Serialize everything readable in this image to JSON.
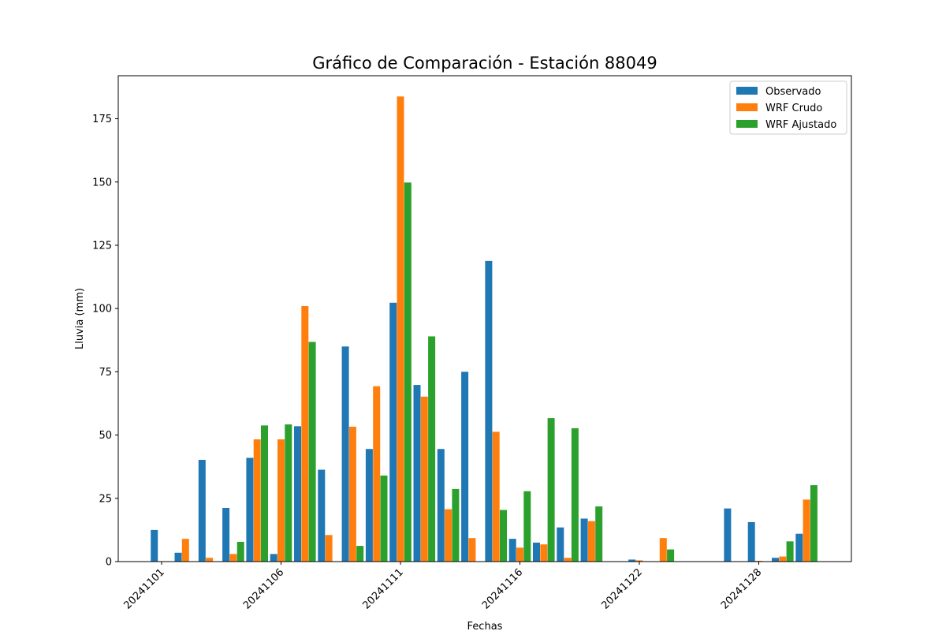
{
  "chart_data": {
    "type": "bar",
    "title": "Gráfico de Comparación - Estación 88049",
    "xlabel": "Fechas",
    "ylabel": "Lluvia (mm)",
    "ylim": [
      0,
      192
    ],
    "yticks": [
      0,
      25,
      50,
      75,
      100,
      125,
      150,
      175
    ],
    "grid": false,
    "legend_position": "top-right",
    "x_tick_labels": [
      {
        "label": "20241101",
        "day": 1
      },
      {
        "label": "20241106",
        "day": 6
      },
      {
        "label": "20241111",
        "day": 11
      },
      {
        "label": "20241116",
        "day": 16
      },
      {
        "label": "20241122",
        "day": 21
      },
      {
        "label": "20241128",
        "day": 26
      }
    ],
    "days": [
      1,
      2,
      3,
      4,
      5,
      6,
      7,
      8,
      9,
      10,
      11,
      12,
      13,
      14,
      15,
      16,
      17,
      18,
      19,
      20,
      21,
      22,
      23,
      24,
      25,
      26,
      27,
      28
    ],
    "series": [
      {
        "name": "Observado",
        "color": "#1f77b4",
        "values": [
          12.5,
          3.5,
          40.2,
          21.2,
          41.0,
          3.0,
          53.5,
          36.3,
          85.0,
          44.5,
          102.3,
          69.8,
          44.5,
          75.0,
          118.8,
          9.0,
          7.5,
          13.5,
          17.0,
          0,
          0.8,
          0,
          0,
          0,
          21.0,
          15.6,
          1.5,
          11.0
        ]
      },
      {
        "name": "WRF Crudo",
        "color": "#ff7f0e",
        "values": [
          0,
          9.0,
          1.5,
          3.0,
          48.3,
          48.3,
          101.0,
          10.5,
          53.3,
          69.3,
          183.8,
          65.2,
          20.7,
          9.3,
          51.3,
          5.5,
          6.8,
          1.5,
          16.0,
          0,
          0.5,
          9.3,
          0,
          0,
          0,
          0.3,
          2.0,
          24.5
        ]
      },
      {
        "name": "WRF Ajustado",
        "color": "#2ca02c",
        "values": [
          0,
          0,
          0,
          7.8,
          53.8,
          54.2,
          86.8,
          0,
          6.2,
          34.0,
          149.8,
          89.0,
          28.7,
          0,
          20.4,
          27.8,
          56.7,
          52.7,
          21.8,
          0,
          0,
          4.8,
          0,
          0,
          0,
          0,
          8.0,
          30.2
        ]
      }
    ]
  }
}
